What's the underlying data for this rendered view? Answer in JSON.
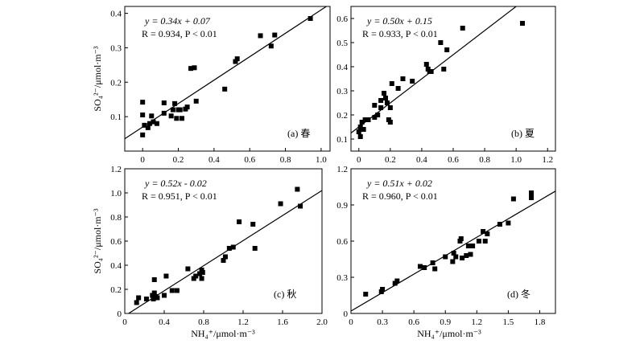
{
  "chart_data": [
    {
      "type": "scatter",
      "panel_label": "(a) 春",
      "equation": "y = 0.34x + 0.07",
      "stats": "R = 0.934, P < 0.01",
      "fit": {
        "slope": 0.34,
        "intercept": 0.07
      },
      "xlim": [
        -0.1,
        1.05
      ],
      "ylim": [
        0,
        0.42
      ],
      "xticks": [
        0,
        0.2,
        0.4,
        0.6,
        0.8,
        1.0
      ],
      "xtick_labels": [
        "0",
        "0.2",
        "0.4",
        "0.6",
        "0.8",
        "1.0"
      ],
      "yticks": [
        0.1,
        0.2,
        0.3,
        0.4
      ],
      "ytick_labels": [
        "0.1",
        "0.2",
        "0.3",
        "0.4"
      ],
      "x": [
        0.0,
        0.0,
        0.0,
        0.01,
        0.03,
        0.04,
        0.05,
        0.06,
        0.08,
        0.12,
        0.12,
        0.16,
        0.17,
        0.18,
        0.19,
        0.2,
        0.21,
        0.22,
        0.24,
        0.25,
        0.27,
        0.29,
        0.3,
        0.46,
        0.52,
        0.53,
        0.66,
        0.72,
        0.74,
        0.94
      ],
      "y": [
        0.142,
        0.105,
        0.047,
        0.075,
        0.068,
        0.08,
        0.102,
        0.085,
        0.08,
        0.14,
        0.11,
        0.102,
        0.12,
        0.138,
        0.095,
        0.12,
        0.12,
        0.095,
        0.122,
        0.128,
        0.24,
        0.242,
        0.145,
        0.18,
        0.26,
        0.268,
        0.335,
        0.305,
        0.337,
        0.385
      ]
    },
    {
      "type": "scatter",
      "panel_label": "(b) 夏",
      "equation": "y = 0.50x + 0.15",
      "stats": "R = 0.933, P < 0.01",
      "fit": {
        "slope": 0.5,
        "intercept": 0.15
      },
      "xlim": [
        -0.05,
        1.25
      ],
      "ylim": [
        0.05,
        0.65
      ],
      "xticks": [
        0,
        0.2,
        0.4,
        0.6,
        0.8,
        1.0,
        1.2
      ],
      "xtick_labels": [
        "0",
        "0.2",
        "0.4",
        "0.6",
        "0.8",
        "1.0",
        "1.2"
      ],
      "yticks": [
        0.1,
        0.2,
        0.3,
        0.4,
        0.5,
        0.6
      ],
      "ytick_labels": [
        "0.1",
        "0.2",
        "0.3",
        "0.4",
        "0.5",
        "0.6"
      ],
      "x": [
        0.0,
        0.01,
        0.01,
        0.02,
        0.03,
        0.04,
        0.06,
        0.1,
        0.1,
        0.12,
        0.14,
        0.14,
        0.16,
        0.17,
        0.18,
        0.19,
        0.2,
        0.2,
        0.21,
        0.25,
        0.28,
        0.34,
        0.43,
        0.44,
        0.45,
        0.46,
        0.52,
        0.54,
        0.56,
        0.66,
        1.04
      ],
      "y": [
        0.13,
        0.11,
        0.15,
        0.17,
        0.14,
        0.18,
        0.18,
        0.24,
        0.19,
        0.2,
        0.23,
        0.26,
        0.29,
        0.27,
        0.25,
        0.18,
        0.17,
        0.23,
        0.33,
        0.31,
        0.35,
        0.34,
        0.41,
        0.39,
        0.38,
        0.38,
        0.5,
        0.39,
        0.47,
        0.56,
        0.58
      ]
    },
    {
      "type": "scatter",
      "panel_label": "(c) 秋",
      "equation": "y = 0.52x - 0.02",
      "stats": "R = 0.951, P < 0.01",
      "fit": {
        "slope": 0.52,
        "intercept": -0.02
      },
      "xlim": [
        0,
        2.0
      ],
      "ylim": [
        0,
        1.2
      ],
      "xticks": [
        0,
        0.4,
        0.8,
        1.2,
        1.6,
        2.0
      ],
      "xtick_labels": [
        "0",
        "0.4",
        "0.8",
        "1.2",
        "1.6",
        "2.0"
      ],
      "yticks": [
        0,
        0.2,
        0.4,
        0.6,
        0.8,
        1.0,
        1.2
      ],
      "ytick_labels": [
        "0",
        "0.2",
        "0.4",
        "0.6",
        "0.8",
        "1.0",
        "1.2"
      ],
      "x": [
        0.12,
        0.14,
        0.22,
        0.28,
        0.29,
        0.3,
        0.31,
        0.33,
        0.4,
        0.42,
        0.48,
        0.53,
        0.64,
        0.7,
        0.72,
        0.76,
        0.78,
        0.78,
        0.79,
        1.0,
        1.02,
        1.06,
        1.1,
        1.16,
        1.3,
        1.32,
        1.58,
        1.75,
        1.78,
        0.3
      ],
      "y": [
        0.09,
        0.13,
        0.12,
        0.15,
        0.12,
        0.17,
        0.14,
        0.13,
        0.15,
        0.31,
        0.19,
        0.19,
        0.37,
        0.29,
        0.31,
        0.33,
        0.36,
        0.29,
        0.34,
        0.44,
        0.47,
        0.54,
        0.55,
        0.76,
        0.74,
        0.54,
        0.91,
        1.03,
        0.89,
        0.28
      ]
    },
    {
      "type": "scatter",
      "panel_label": "(d) 冬",
      "equation": "y = 0.51x + 0.02",
      "stats": "R = 0.960, P < 0.01",
      "fit": {
        "slope": 0.51,
        "intercept": 0.02
      },
      "xlim": [
        0,
        1.95
      ],
      "ylim": [
        0,
        1.2
      ],
      "xticks": [
        0,
        0.3,
        0.6,
        0.9,
        1.2,
        1.5,
        1.8
      ],
      "xtick_labels": [
        "0",
        "0.3",
        "0.6",
        "0.9",
        "1.2",
        "1.5",
        "1.8"
      ],
      "yticks": [
        0,
        0.3,
        0.6,
        0.9,
        1.2
      ],
      "ytick_labels": [
        "0",
        "0.3",
        "0.6",
        "0.9",
        "1.2"
      ],
      "x": [
        0.14,
        0.29,
        0.3,
        0.42,
        0.44,
        0.66,
        0.7,
        0.78,
        0.8,
        0.9,
        0.97,
        0.98,
        1.0,
        1.04,
        1.05,
        1.06,
        1.1,
        1.12,
        1.14,
        1.16,
        1.22,
        1.26,
        1.28,
        1.3,
        1.42,
        1.5,
        1.55,
        1.72,
        1.72
      ],
      "y": [
        0.16,
        0.18,
        0.2,
        0.25,
        0.27,
        0.39,
        0.38,
        0.42,
        0.37,
        0.47,
        0.43,
        0.5,
        0.47,
        0.6,
        0.62,
        0.46,
        0.48,
        0.56,
        0.49,
        0.56,
        0.6,
        0.68,
        0.6,
        0.66,
        0.74,
        0.75,
        0.95,
        0.96,
        1.0
      ]
    }
  ],
  "y_axis_label_top": "SO₄²⁻/μmol·m⁻³",
  "y_axis_label_bottom": "SO₄²⁻/μmol·m⁻³",
  "x_axis_label_left": "NH₄⁺/μmol·m⁻³",
  "x_axis_label_right": "NH₄⁺/μmol·m⁻³"
}
